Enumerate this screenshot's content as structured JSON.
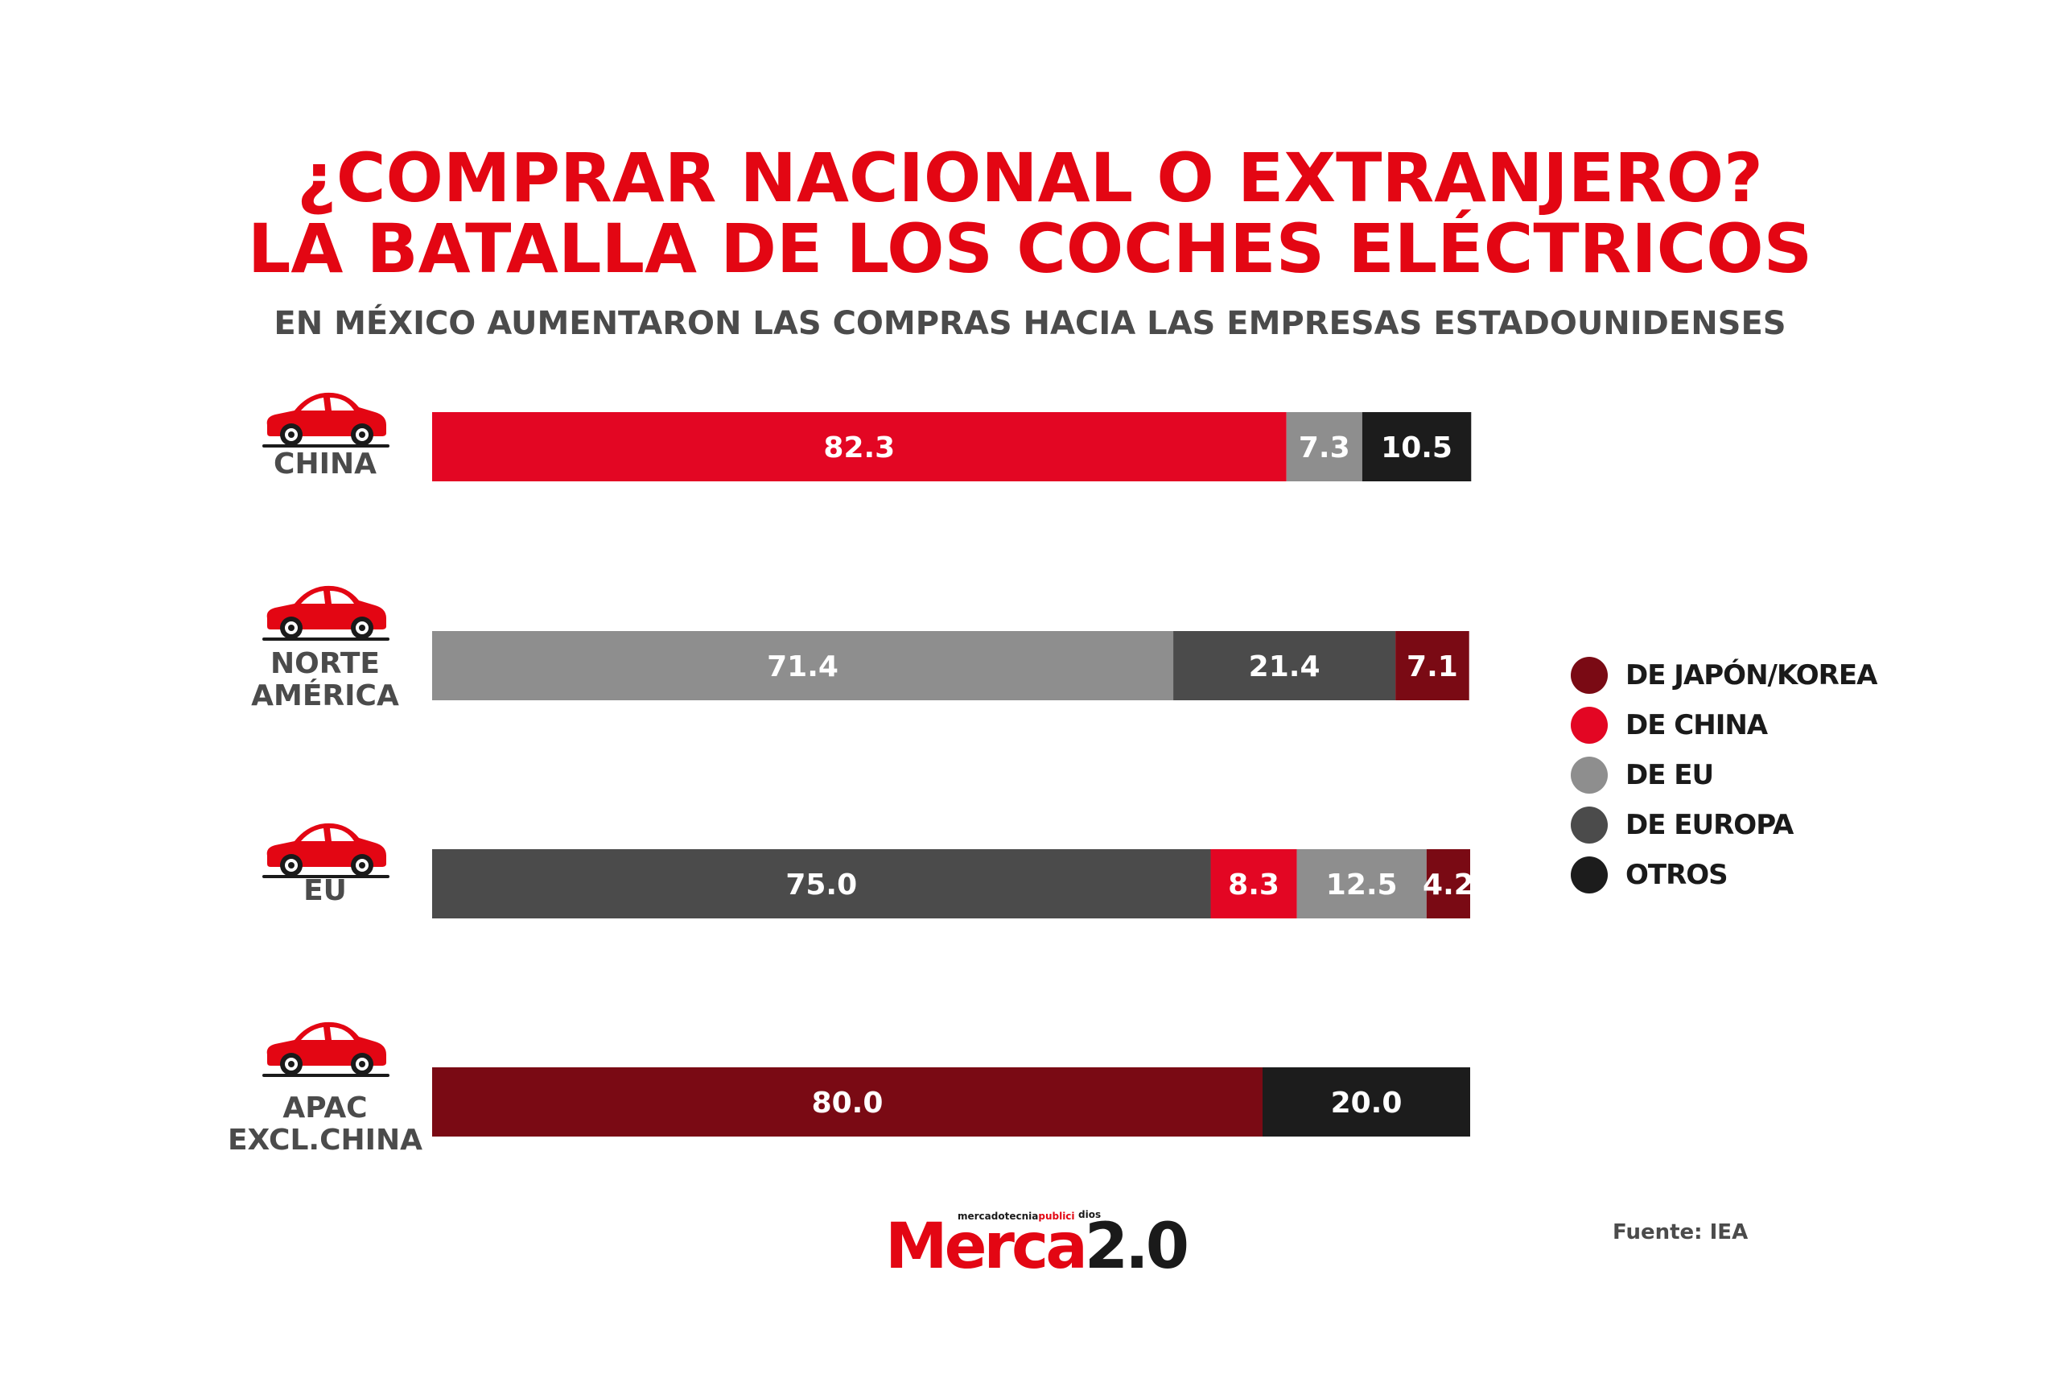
{
  "title_line1": "¿COMPRAR NACIONAL O EXTRANJERO?",
  "title_line2": "LA BATALLA DE LOS COCHES ELÉCTRICOS",
  "subtitle": "EN MÉXICO AUMENTARON LAS COMPRAS HACIA LAS EMPRESAS ESTADOUNIDENSES",
  "source": "Fuente:  IEA",
  "logo": {
    "main": "Merca",
    "version": "2.0",
    "tagline_dark": "mercadotecnia",
    "tagline_red": "publici",
    "tagline_right": "dios"
  },
  "icons": {
    "region": "car-icon"
  },
  "chart_data": {
    "type": "bar",
    "orientation": "horizontal",
    "stacked": true,
    "categories": [
      [
        "CHINA"
      ],
      [
        "NORTE",
        "AMÉRICA"
      ],
      [
        "EU"
      ],
      [
        "APAC",
        "EXCL.CHINA"
      ]
    ],
    "legend": [
      {
        "name": "DE JAPÓN/KOREA",
        "color": "#7a0a14"
      },
      {
        "name": "DE CHINA",
        "color": "#e30623"
      },
      {
        "name": "DE EU",
        "color": "#8e8e8e"
      },
      {
        "name": "DE EUROPA",
        "color": "#4b4b4b"
      },
      {
        "name": "OTROS",
        "color": "#1c1c1c"
      }
    ],
    "legend_position": "right",
    "bars": [
      {
        "segments": [
          {
            "series": "DE CHINA",
            "value": 82.3,
            "label": "82.3"
          },
          {
            "series": "DE EU",
            "value": 7.3,
            "label": "7.3"
          },
          {
            "series": "OTROS",
            "value": 10.5,
            "label": "10.5"
          }
        ]
      },
      {
        "segments": [
          {
            "series": "DE EU",
            "value": 71.4,
            "label": "71.4"
          },
          {
            "series": "DE EUROPA",
            "value": 21.4,
            "label": "21.4"
          },
          {
            "series": "DE JAPÓN/KOREA",
            "value": 7.1,
            "label": "7.1"
          }
        ]
      },
      {
        "segments": [
          {
            "series": "DE EUROPA",
            "value": 75.0,
            "label": "75.0"
          },
          {
            "series": "DE CHINA",
            "value": 8.3,
            "label": "8.3"
          },
          {
            "series": "DE EU",
            "value": 12.5,
            "label": "12.5"
          },
          {
            "series": "DE JAPÓN/KOREA",
            "value": 4.2,
            "label": "4.2"
          }
        ]
      },
      {
        "segments": [
          {
            "series": "DE JAPÓN/KOREA",
            "value": 80.0,
            "label": "80.0"
          },
          {
            "series": "OTROS",
            "value": 20.0,
            "label": "20.0"
          }
        ]
      }
    ],
    "xlim": [
      0,
      100
    ],
    "grid": false
  }
}
